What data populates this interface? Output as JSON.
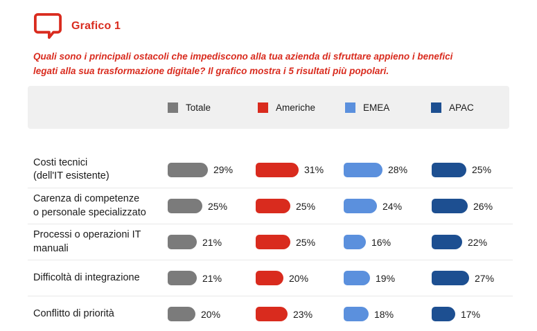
{
  "header": {
    "title": "Grafico 1",
    "icon": "speech-bubble-icon",
    "accent_color": "#D92B1E"
  },
  "question": "Quali sono i principali ostacoli che impediscono alla tua azienda di sfruttare appieno i benefici\nlegati alla sua trasformazione digitale? Il grafico mostra i 5 risultati più popolari.",
  "colors": {
    "accent_red": "#D92B1E",
    "totale_gray": "#7B7B7B",
    "emea_light_blue": "#5B90DD",
    "apac_dark_blue": "#1D4F91",
    "legend_background": "#F0F0F0",
    "row_separator": "#E8E8E8",
    "text": "#1A1A1A"
  },
  "chart_data": {
    "type": "bar",
    "orientation": "horizontal",
    "title": "Grafico 1",
    "value_suffix": "%",
    "legend_position": "top",
    "xlim": [
      0,
      35
    ],
    "grid": false,
    "categories": [
      "Costi tecnici\n(dell'IT esistente)",
      "Carenza di competenze\no personale specializzato",
      "Processi o operazioni IT\nmanuali",
      "Difficoltà di integrazione",
      "Conflitto di priorità"
    ],
    "series": [
      {
        "name": "Totale",
        "color": "#7B7B7B",
        "values": [
          29,
          25,
          21,
          21,
          20
        ]
      },
      {
        "name": "Americhe",
        "color": "#D92B1E",
        "values": [
          31,
          25,
          25,
          20,
          23
        ]
      },
      {
        "name": "EMEA",
        "color": "#5B90DD",
        "values": [
          28,
          24,
          16,
          19,
          18
        ]
      },
      {
        "name": "APAC",
        "color": "#1D4F91",
        "values": [
          25,
          26,
          22,
          27,
          17
        ]
      }
    ]
  }
}
